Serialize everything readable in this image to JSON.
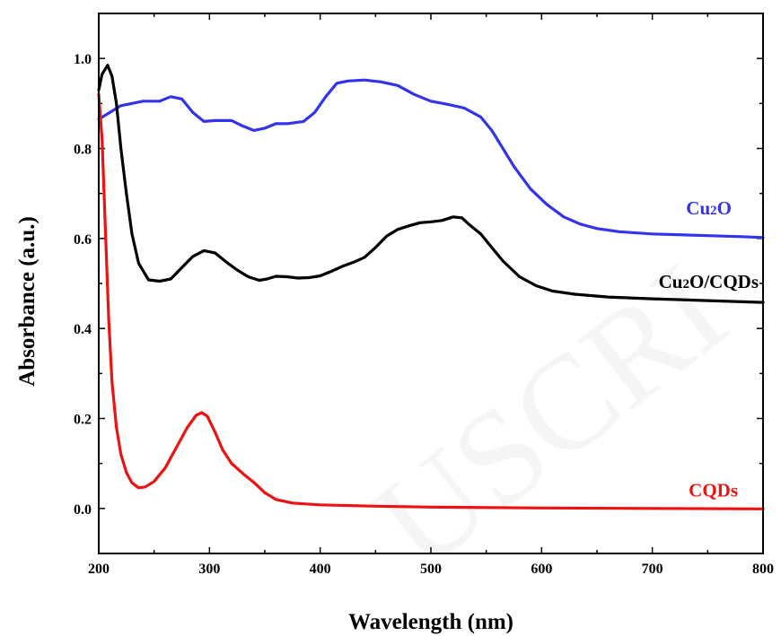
{
  "chart_data": {
    "type": "line",
    "xlabel": "Wavelength (nm)",
    "ylabel": "Absorbance (a.u.)",
    "xlim": [
      200,
      800
    ],
    "ylim": [
      -0.1,
      1.1
    ],
    "x_ticks": [
      200,
      300,
      400,
      500,
      600,
      700,
      800
    ],
    "y_ticks": [
      0.0,
      0.2,
      0.4,
      0.6,
      0.8,
      1.0
    ],
    "x_tick_labels": [
      "200",
      "300",
      "400",
      "500",
      "600",
      "700",
      "800"
    ],
    "y_tick_labels": [
      "0.0",
      "0.2",
      "0.4",
      "0.6",
      "0.8",
      "1.0"
    ],
    "grid": false,
    "series": [
      {
        "name": "Cu2O",
        "label_main": "Cu",
        "label_sub": "2",
        "label_tail": "O",
        "color": "#3333ee",
        "points": [
          [
            200,
            0.865
          ],
          [
            210,
            0.88
          ],
          [
            220,
            0.895
          ],
          [
            240,
            0.905
          ],
          [
            255,
            0.905
          ],
          [
            265,
            0.915
          ],
          [
            275,
            0.91
          ],
          [
            285,
            0.88
          ],
          [
            295,
            0.86
          ],
          [
            305,
            0.862
          ],
          [
            320,
            0.862
          ],
          [
            330,
            0.85
          ],
          [
            340,
            0.84
          ],
          [
            350,
            0.845
          ],
          [
            360,
            0.855
          ],
          [
            370,
            0.855
          ],
          [
            385,
            0.86
          ],
          [
            395,
            0.88
          ],
          [
            405,
            0.915
          ],
          [
            415,
            0.945
          ],
          [
            425,
            0.95
          ],
          [
            440,
            0.952
          ],
          [
            455,
            0.948
          ],
          [
            470,
            0.94
          ],
          [
            485,
            0.92
          ],
          [
            500,
            0.905
          ],
          [
            515,
            0.898
          ],
          [
            530,
            0.89
          ],
          [
            545,
            0.87
          ],
          [
            555,
            0.84
          ],
          [
            565,
            0.8
          ],
          [
            575,
            0.76
          ],
          [
            590,
            0.71
          ],
          [
            605,
            0.675
          ],
          [
            620,
            0.648
          ],
          [
            635,
            0.632
          ],
          [
            650,
            0.622
          ],
          [
            670,
            0.615
          ],
          [
            700,
            0.61
          ],
          [
            740,
            0.607
          ],
          [
            780,
            0.604
          ],
          [
            800,
            0.602
          ]
        ]
      },
      {
        "name": "Cu2O/CQDs",
        "label_main": "Cu",
        "label_sub": "2",
        "label_tail": "O/CQDs",
        "color": "#000000",
        "points": [
          [
            200,
            0.93
          ],
          [
            203,
            0.965
          ],
          [
            208,
            0.985
          ],
          [
            212,
            0.96
          ],
          [
            216,
            0.9
          ],
          [
            220,
            0.8
          ],
          [
            225,
            0.7
          ],
          [
            230,
            0.61
          ],
          [
            236,
            0.545
          ],
          [
            245,
            0.508
          ],
          [
            255,
            0.505
          ],
          [
            265,
            0.51
          ],
          [
            275,
            0.535
          ],
          [
            285,
            0.56
          ],
          [
            295,
            0.573
          ],
          [
            305,
            0.568
          ],
          [
            315,
            0.548
          ],
          [
            325,
            0.53
          ],
          [
            335,
            0.515
          ],
          [
            345,
            0.507
          ],
          [
            352,
            0.51
          ],
          [
            360,
            0.516
          ],
          [
            370,
            0.515
          ],
          [
            380,
            0.512
          ],
          [
            390,
            0.513
          ],
          [
            400,
            0.517
          ],
          [
            410,
            0.527
          ],
          [
            420,
            0.538
          ],
          [
            430,
            0.547
          ],
          [
            440,
            0.558
          ],
          [
            450,
            0.58
          ],
          [
            460,
            0.605
          ],
          [
            470,
            0.62
          ],
          [
            480,
            0.628
          ],
          [
            490,
            0.635
          ],
          [
            500,
            0.637
          ],
          [
            510,
            0.64
          ],
          [
            520,
            0.648
          ],
          [
            528,
            0.646
          ],
          [
            535,
            0.63
          ],
          [
            545,
            0.61
          ],
          [
            555,
            0.58
          ],
          [
            565,
            0.55
          ],
          [
            580,
            0.515
          ],
          [
            595,
            0.495
          ],
          [
            610,
            0.483
          ],
          [
            630,
            0.476
          ],
          [
            660,
            0.47
          ],
          [
            700,
            0.466
          ],
          [
            750,
            0.462
          ],
          [
            800,
            0.458
          ]
        ]
      },
      {
        "name": "CQDs",
        "label_main": "CQDs",
        "label_sub": "",
        "label_tail": "",
        "color": "#ee1111",
        "points": [
          [
            200,
            0.92
          ],
          [
            203,
            0.82
          ],
          [
            206,
            0.62
          ],
          [
            209,
            0.42
          ],
          [
            212,
            0.28
          ],
          [
            216,
            0.18
          ],
          [
            220,
            0.12
          ],
          [
            225,
            0.08
          ],
          [
            230,
            0.057
          ],
          [
            236,
            0.046
          ],
          [
            242,
            0.048
          ],
          [
            250,
            0.06
          ],
          [
            260,
            0.09
          ],
          [
            270,
            0.135
          ],
          [
            280,
            0.18
          ],
          [
            288,
            0.207
          ],
          [
            293,
            0.213
          ],
          [
            298,
            0.205
          ],
          [
            305,
            0.17
          ],
          [
            312,
            0.13
          ],
          [
            320,
            0.1
          ],
          [
            330,
            0.078
          ],
          [
            340,
            0.058
          ],
          [
            350,
            0.035
          ],
          [
            360,
            0.02
          ],
          [
            375,
            0.012
          ],
          [
            400,
            0.008
          ],
          [
            450,
            0.005
          ],
          [
            500,
            0.003
          ],
          [
            600,
            0.001
          ],
          [
            700,
            0.0
          ],
          [
            800,
            -0.001
          ]
        ]
      }
    ]
  },
  "watermark": "USCRI"
}
